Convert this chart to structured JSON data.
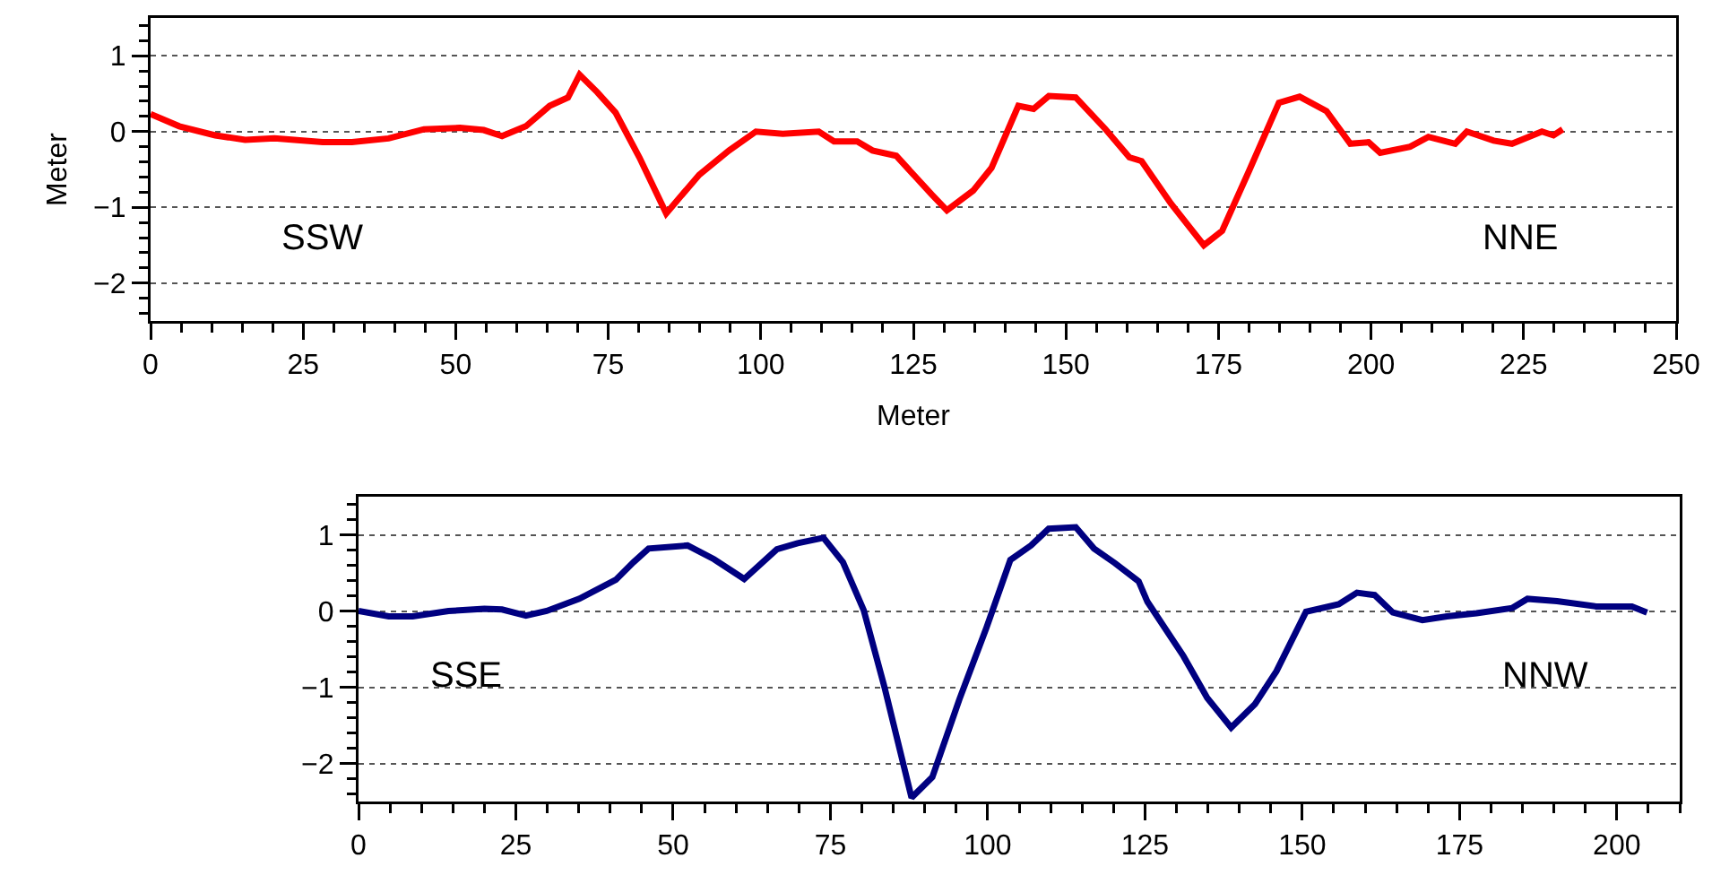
{
  "chart_data": [
    {
      "type": "line",
      "xlabel": "Meter",
      "ylabel": "Meter",
      "annotations": [
        "SSW",
        "NNE"
      ],
      "xlim": [
        0,
        250
      ],
      "xticks": [
        0,
        25,
        50,
        75,
        100,
        125,
        150,
        175,
        200,
        225,
        250
      ],
      "ylim": [
        -2.5,
        1.5
      ],
      "yticks": [
        -2,
        -1,
        0,
        1
      ],
      "grid": "y",
      "marker": "none",
      "line_style": "solid",
      "series": [
        {
          "color": "#ff0000",
          "x": [
            0,
            4.7,
            10.6,
            15.5,
            20.3,
            28.2,
            33,
            39,
            44.8,
            50.7,
            54.6,
            57.6,
            61.5,
            65.4,
            68.4,
            70.3,
            73.2,
            76.2,
            80.1,
            84.5,
            89.9,
            94.8,
            99.2,
            103.6,
            109.5,
            112,
            115.8,
            118.3,
            122.2,
            128,
            130.5,
            134.8,
            137.8,
            142.2,
            144.7,
            147.2,
            151.6,
            156.5,
            160.4,
            162.4,
            167.2,
            172.6,
            175.6,
            180,
            184.9,
            188.3,
            192.7,
            196.6,
            199.6,
            201.5,
            206.4,
            209.4,
            213.8,
            215.7,
            220.1,
            223.1,
            228,
            229.9,
            231.4
          ],
          "values": [
            0.23,
            0.07,
            -0.05,
            -0.11,
            -0.09,
            -0.14,
            -0.14,
            -0.09,
            0.03,
            0.05,
            0.02,
            -0.06,
            0.07,
            0.34,
            0.45,
            0.75,
            0.52,
            0.25,
            -0.34,
            -1.08,
            -0.57,
            -0.25,
            0,
            -0.03,
            0,
            -0.13,
            -0.13,
            -0.25,
            -0.32,
            -0.83,
            -1.04,
            -0.78,
            -0.48,
            0.34,
            0.3,
            0.47,
            0.45,
            0.03,
            -0.34,
            -0.39,
            -0.95,
            -1.5,
            -1.31,
            -0.52,
            0.38,
            0.46,
            0.27,
            -0.16,
            -0.14,
            -0.28,
            -0.2,
            -0.07,
            -0.16,
            0,
            -0.12,
            -0.16,
            0,
            -0.05,
            0.03
          ]
        }
      ]
    },
    {
      "type": "line",
      "annotations": [
        "SSE",
        "NNW"
      ],
      "xlim": [
        0,
        210
      ],
      "xticks": [
        0,
        25,
        50,
        75,
        100,
        125,
        150,
        175,
        200
      ],
      "ylim": [
        -2.5,
        1.5
      ],
      "yticks": [
        -2,
        -1,
        0,
        1
      ],
      "grid": "y",
      "marker": "none",
      "line_style": "solid",
      "series": [
        {
          "color": "#000080",
          "x": [
            0,
            4.8,
            8.6,
            14.3,
            20,
            22.8,
            26.6,
            29.9,
            35.1,
            40.9,
            43.7,
            46.1,
            52.3,
            56.5,
            61.3,
            66.5,
            69.8,
            73.9,
            77,
            80.3,
            83.6,
            87.9,
            91.2,
            95.5,
            99.8,
            103.6,
            106.9,
            109.7,
            114,
            116.9,
            120.2,
            124,
            125.4,
            131.1,
            134.9,
            138.7,
            142.5,
            145.9,
            150.6,
            155.8,
            158.7,
            161.5,
            164.4,
            169.1,
            173,
            177.7,
            183.4,
            185.8,
            190.5,
            196.7,
            202.4,
            204.8
          ],
          "values": [
            0,
            -0.07,
            -0.07,
            0,
            0.03,
            0.02,
            -0.06,
            0,
            0.16,
            0.41,
            0.64,
            0.82,
            0.86,
            0.68,
            0.42,
            0.81,
            0.89,
            0.96,
            0.64,
            0.01,
            -1,
            -2.45,
            -2.18,
            -1.16,
            -0.22,
            0.67,
            0.86,
            1.08,
            1.1,
            0.82,
            0.63,
            0.39,
            0.12,
            -0.59,
            -1.14,
            -1.53,
            -1.22,
            -0.79,
            -0.01,
            0.09,
            0.24,
            0.21,
            -0.02,
            -0.12,
            -0.07,
            -0.03,
            0.04,
            0.16,
            0.13,
            0.06,
            0.06,
            -0.02
          ]
        }
      ]
    }
  ]
}
